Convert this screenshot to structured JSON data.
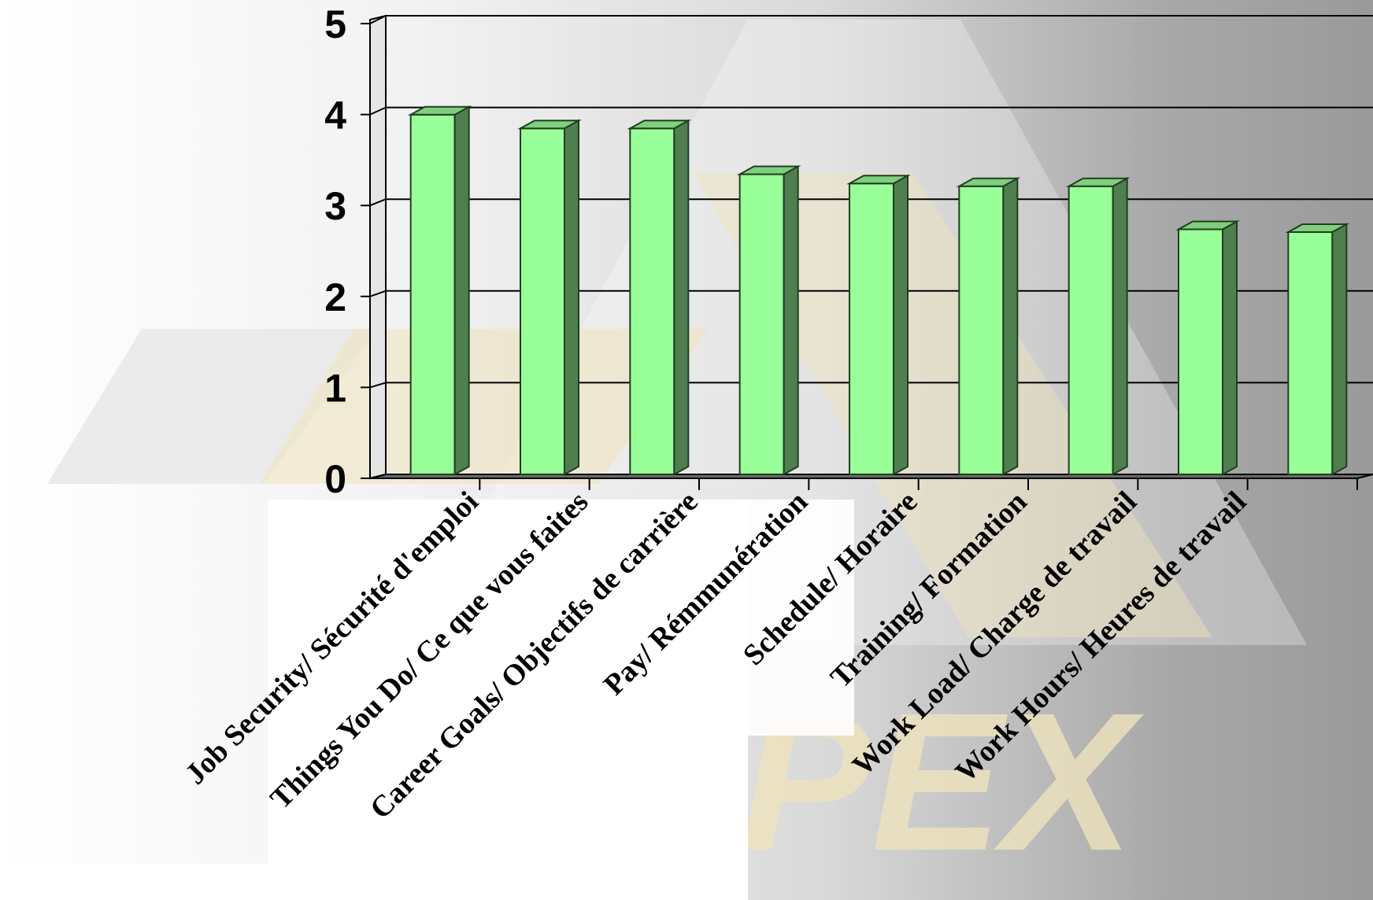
{
  "colors": {
    "bar_front": "#99ff99",
    "bar_side": "#4f7f4f",
    "bar_top": "#7fcf7f",
    "bar_stroke": "#1f3f1f",
    "gridline": "#000000",
    "floor": "#6b6b6b"
  },
  "watermark": {
    "text": "PEX"
  },
  "chart_data": {
    "type": "bar",
    "style": "3d-column",
    "title": "",
    "xlabel": "",
    "ylabel": "",
    "ylim": [
      0,
      5
    ],
    "yticks": [
      0,
      1,
      2,
      3,
      4,
      5
    ],
    "grid": true,
    "legend": "none",
    "categories": [
      "Job Security/ Sécurité d'emploi",
      "Things You Do/ Ce que vous faites",
      "Career Goals/ Objectifs de carrière",
      "Pay/ Rémmunération",
      "Schedule/ Horaire",
      "Training/ Formation",
      "Work Load/ Charge de travail",
      "Work Hours/ Heures de travail",
      ""
    ],
    "values": [
      4.05,
      3.9,
      3.9,
      3.4,
      3.3,
      3.27,
      3.27,
      2.8,
      2.77
    ]
  }
}
